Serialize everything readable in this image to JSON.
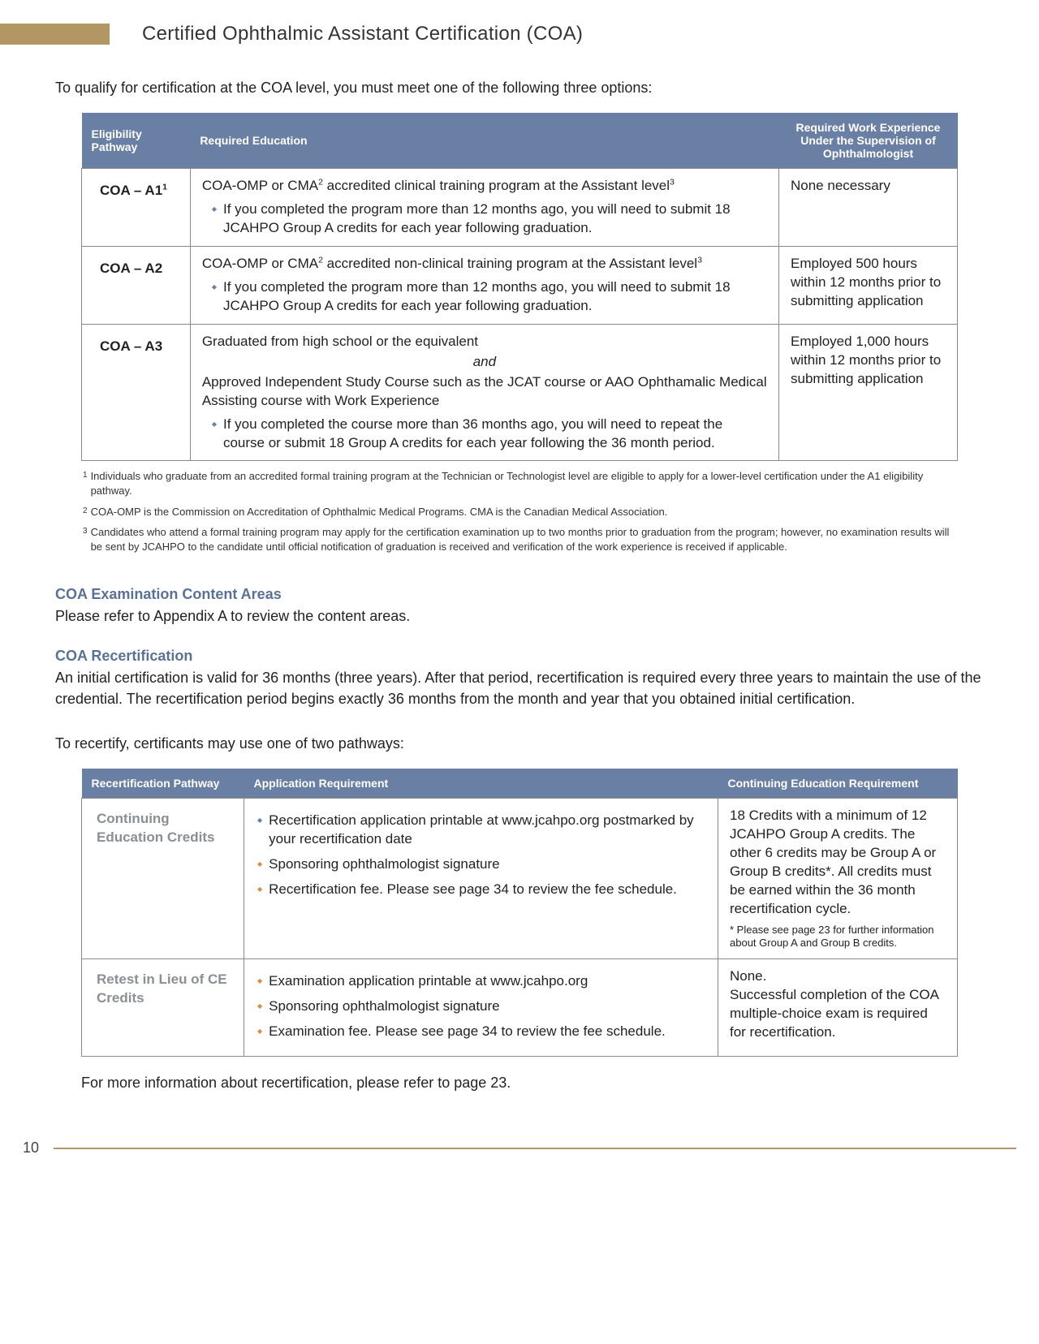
{
  "header": {
    "title": "Certified Ophthalmic Assistant Certification (COA)"
  },
  "intro": "To qualify for certification at the COA level, you must meet one of the following three options:",
  "colors": {
    "gold": "#b29664",
    "tableHeader": "#6a7fa4",
    "sectionHead": "#5a7196",
    "bulletOrange": "#d98c3a"
  },
  "table1": {
    "headers": {
      "pathway": "Eligibility Pathway",
      "education": "Required Education",
      "workexp": "Required Work Experience Under the Supervision of Ophthalmologist"
    },
    "rows": [
      {
        "pathway_html": "COA – A1<sup>1</sup>",
        "education_html": "COA-OMP or CMA<sup>2</sup> accredited clinical training program at the Assistant level<sup>3</sup>",
        "bullets": [
          "If you completed the program more than 12 months ago, you will need to submit 18 JCAHPO Group A credits for each year following graduation."
        ],
        "bullet_style": "b-blue",
        "workexp": "None necessary"
      },
      {
        "pathway_html": "COA – A2",
        "education_html": "COA-OMP or CMA<sup>2</sup> accredited non-clinical training program at the Assistant level<sup>3</sup>",
        "bullets": [
          "If you completed the program more than 12 months ago, you will need to submit 18 JCAHPO Group A credits for each year following graduation."
        ],
        "bullet_style": "b-blue",
        "workexp": "Employed 500 hours within 12 months prior to submitting application"
      },
      {
        "pathway_html": "COA – A3",
        "education_compound": {
          "line1": "Graduated from high school or the equivalent",
          "and": "and",
          "line2": "Approved Independent Study Course such as the JCAT course or AAO Ophthamalic Medical Assisting course with Work Experience"
        },
        "bullets": [
          "If you completed the course more than 36 months ago, you will need to repeat the course or submit 18 Group A credits for each year following the 36 month period."
        ],
        "bullet_style": "b-blue",
        "workexp": "Employed 1,000 hours within 12 months prior to submitting application"
      }
    ]
  },
  "footnotes": [
    {
      "mark": "1",
      "text": "Individuals who graduate from an accredited formal training program at the Technician or Technologist level are eligible to apply for a lower-level certification under the A1 eligibility pathway."
    },
    {
      "mark": "2",
      "text": "COA-OMP is the Commission on Accreditation of Ophthalmic Medical Programs. CMA is the Canadian Medical Association."
    },
    {
      "mark": "3",
      "text": "Candidates who attend a formal training program may apply for the certification examination up to two months prior to graduation from the program; however, no examination results will be sent by JCAHPO to the candidate until official notification of graduation is received and verification of the work experience is received if applicable."
    }
  ],
  "contentAreas": {
    "head": "COA Examination Content Areas",
    "text": "Please refer to Appendix A to review the content areas."
  },
  "recert": {
    "head": "COA Recertification",
    "text": "An initial certification is valid for 36 months (three years). After that period, recertification is required every three years to maintain the use of the credential. The recertification period begins exactly 36 months from the month and year that you obtained initial certification."
  },
  "recertIntro": "To recertify, certificants may use one of two pathways:",
  "table2": {
    "headers": {
      "pathway": "Recertification Pathway",
      "appreq": "Application Requirement",
      "cereq": "Continuing Education Requirement"
    },
    "rows": [
      {
        "pathway": "Continuing Education Credits",
        "bullets": [
          "Recertification application printable at www.jcahpo.org postmarked by your recertification date",
          "Sponsoring ophthalmologist signature",
          "Recertification fee. Please see page 34 to review the fee schedule."
        ],
        "bullet_style1": "b-blue",
        "bullet_style_rest": "b-orange",
        "cereq": "18 Credits with a minimum of 12 JCAHPO Group A credits. The other 6 credits may be Group A or Group B credits*. All credits must be earned within the 36 month recertification cycle.",
        "cereq_note": "* Please see page 23 for further information about Group A and Group B credits."
      },
      {
        "pathway": "Retest in Lieu of CE Credits",
        "bullets": [
          "Examination application printable at www.jcahpo.org",
          "Sponsoring ophthalmologist signature",
          "Examination fee. Please see page 34 to review the fee schedule."
        ],
        "bullet_style": "b-orange",
        "cereq": "None.\nSuccessful completion of the COA multiple-choice exam is required for recertification."
      }
    ]
  },
  "moreInfo": "For more information about recertification, please refer to page 23.",
  "pageNumber": "10"
}
